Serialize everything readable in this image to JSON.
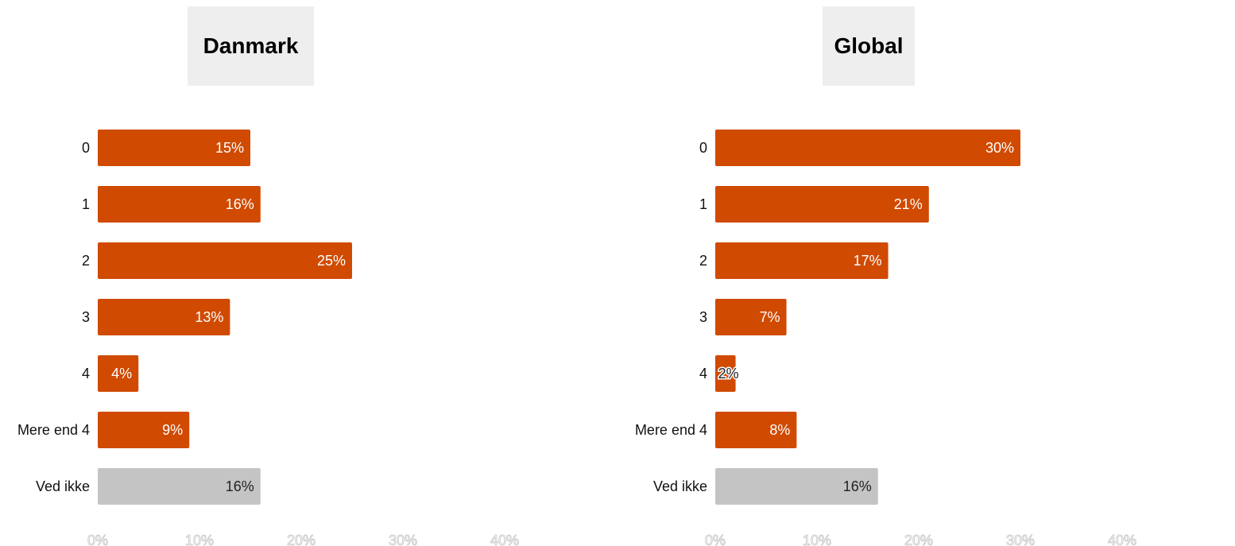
{
  "chart_data": [
    {
      "type": "bar",
      "orientation": "horizontal",
      "title": "Danmark",
      "categories": [
        "0",
        "1",
        "2",
        "3",
        "4",
        "Mere end 4",
        "Ved ikke"
      ],
      "values": [
        15,
        16,
        25,
        13,
        4,
        9,
        16
      ],
      "value_labels": [
        "15%",
        "16%",
        "25%",
        "13%",
        "4%",
        "9%",
        "16%"
      ],
      "bar_colors": [
        "#d04a02",
        "#d04a02",
        "#d04a02",
        "#d04a02",
        "#d04a02",
        "#d04a02",
        "#c4c4c4"
      ],
      "xlim": [
        0,
        40
      ],
      "x_ticks": [
        "0%",
        "10%",
        "20%",
        "30%",
        "40%"
      ],
      "grid": false
    },
    {
      "type": "bar",
      "orientation": "horizontal",
      "title": "Global",
      "categories": [
        "0",
        "1",
        "2",
        "3",
        "4",
        "Mere end 4",
        "Ved ikke"
      ],
      "values": [
        30,
        21,
        17,
        7,
        2,
        8,
        16
      ],
      "value_labels": [
        "30%",
        "21%",
        "17%",
        "7%",
        "2%",
        "8%",
        "16%"
      ],
      "bar_colors": [
        "#d04a02",
        "#d04a02",
        "#d04a02",
        "#d04a02",
        "#d04a02",
        "#d04a02",
        "#c4c4c4"
      ],
      "xlim": [
        0,
        40
      ],
      "x_ticks": [
        "0%",
        "10%",
        "20%",
        "30%",
        "40%"
      ],
      "grid": false
    }
  ]
}
